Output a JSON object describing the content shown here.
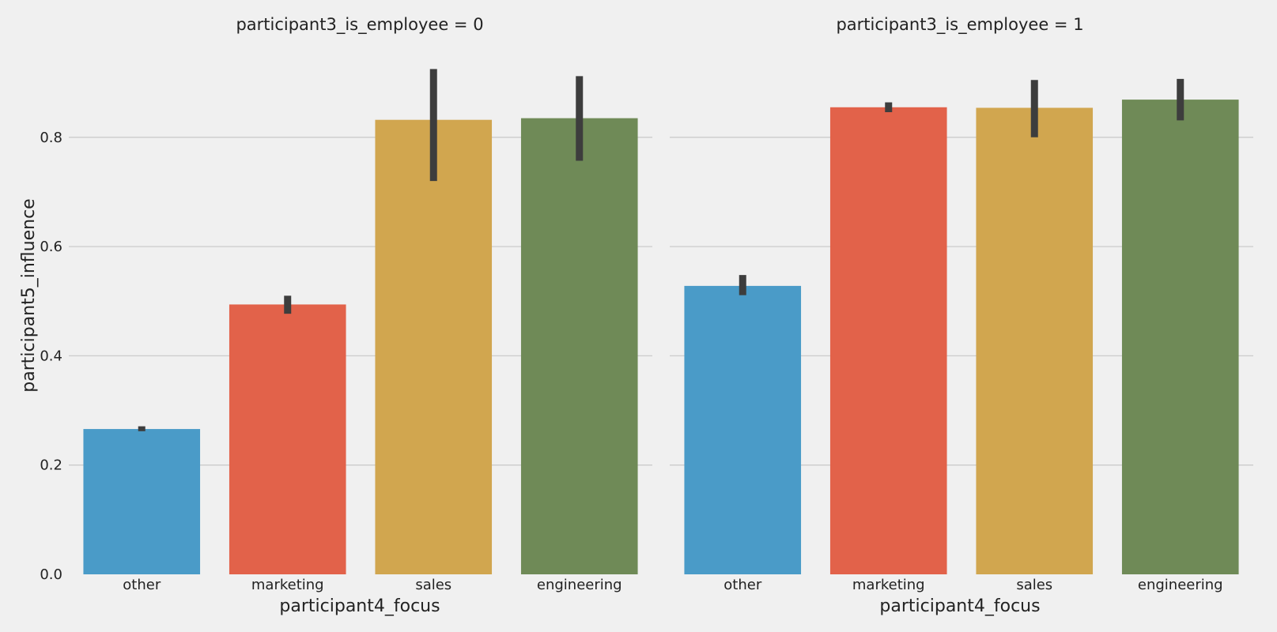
{
  "chart_data": {
    "type": "bar",
    "ylabel": "participant5_influence",
    "ylim": [
      0,
      0.94
    ],
    "yticks": [
      "0.0",
      "0.2",
      "0.4",
      "0.6",
      "0.8"
    ],
    "grid": true,
    "colors": [
      "#4a9bc8",
      "#e2624a",
      "#d1a64f",
      "#6f8a57"
    ],
    "panels": [
      {
        "title": "participant3_is_employee = 0",
        "xlabel": "participant4_focus",
        "categories": [
          "other",
          "marketing",
          "sales",
          "engineering"
        ],
        "values": [
          0.266,
          0.494,
          0.832,
          0.835
        ],
        "ci_low": [
          0.262,
          0.477,
          0.72,
          0.757
        ],
        "ci_high": [
          0.271,
          0.51,
          0.925,
          0.912
        ]
      },
      {
        "title": "participant3_is_employee = 1",
        "xlabel": "participant4_focus",
        "categories": [
          "other",
          "marketing",
          "sales",
          "engineering"
        ],
        "values": [
          0.528,
          0.855,
          0.854,
          0.869
        ],
        "ci_low": [
          0.511,
          0.846,
          0.8,
          0.831
        ],
        "ci_high": [
          0.548,
          0.864,
          0.905,
          0.907
        ]
      }
    ]
  }
}
